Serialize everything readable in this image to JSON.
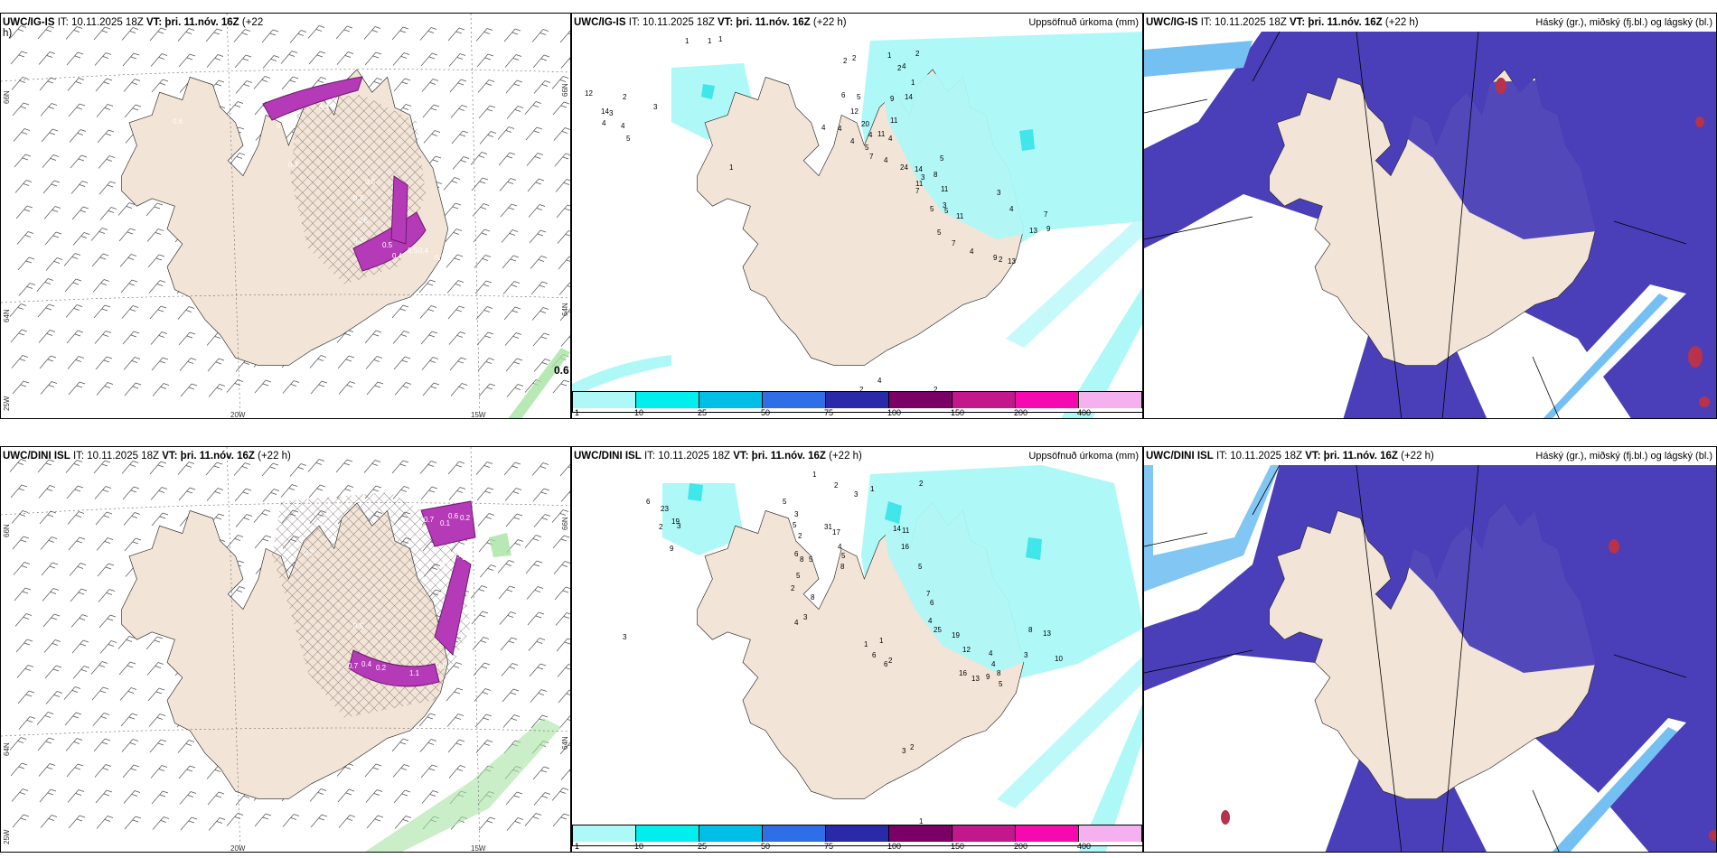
{
  "colors": {
    "land": "#f2e4d6",
    "precip_light": "#aef8f8",
    "precip_mid": "#40e6ea",
    "cloud_dark": "#4a3fb8",
    "cloud_mid": "#4b7bec",
    "cloud_light": "#74c0f2",
    "cloud_red": "#b7324a",
    "magenta": "#b53ab8",
    "green": "#a6e3a1"
  },
  "panels": {
    "ig_wind": {
      "title_model": "UWC/IG-IS",
      "title_it": "IT: 10.11.2025 18Z",
      "title_vt_label": "VT:",
      "title_vt": "þri. 11.nóv. 16Z",
      "title_lead": "(+22",
      "title_lead2": "h)",
      "lat_labels": [
        "66N",
        "64N"
      ],
      "lat_labels_right": [
        "66N",
        "64N"
      ],
      "lon_labels": [
        "25W",
        "20W",
        "15W"
      ],
      "corner_value": "0.6",
      "values": [
        "0.6",
        "0.5",
        "1.1",
        "0.4",
        "0.5",
        "0.3",
        "0.5",
        "0.4",
        "0.5",
        "0.2",
        "0.6",
        "0.2",
        "0.3",
        "0.4"
      ]
    },
    "ig_precip": {
      "title_model": "UWC/IG-IS",
      "title_it": "IT: 10.11.2025 18Z",
      "title_vt_label": "VT:",
      "title_vt": "þri. 11.nóv. 16Z",
      "title_lead": "(+22 h)",
      "right_title": "Uppsöfnuð úrkoma (mm)",
      "values": [
        "1",
        "1",
        "1",
        "12",
        "14",
        "4",
        "3",
        "2",
        "3",
        "4",
        "5",
        "1",
        "6",
        "5",
        "12",
        "20",
        "4",
        "4",
        "4",
        "4",
        "11",
        "11",
        "14",
        "9",
        "2",
        "1",
        "1",
        "4",
        "5",
        "7",
        "4",
        "24",
        "14",
        "3",
        "8",
        "5",
        "7",
        "11",
        "5",
        "11",
        "5",
        "7",
        "4",
        "9",
        "2",
        "13",
        "13",
        "9",
        "7",
        "3",
        "4",
        "4",
        "2",
        "2",
        "2",
        "2",
        "2",
        "4",
        "11",
        "5",
        "3"
      ],
      "colorbar_labels": [
        "1",
        "10",
        "25",
        "50",
        "75",
        "100",
        "150",
        "200",
        "400"
      ]
    },
    "ig_cloud": {
      "title_model": "UWC/IG-IS",
      "title_it": "IT: 10.11.2025 18Z",
      "title_vt_label": "VT:",
      "title_vt": "þri. 11.nóv. 16Z",
      "title_lead": "(+22 h)",
      "right_title": "Háský (gr.), miðský (fj.bl.) og lágský (bl.)"
    },
    "dini_wind": {
      "title_model": "UWC/DINI ISL",
      "title_it": "IT: 10.11.2025 18Z",
      "title_vt_label": "VT:",
      "title_vt": "þri. 11.nóv. 16Z",
      "title_lead": "(+22 h)",
      "lat_labels": [
        "66N",
        "64N"
      ],
      "lat_labels_right": [
        "66N",
        "64N"
      ],
      "lon_labels": [
        "25W",
        "20W",
        "15W"
      ],
      "values": [
        "0.4",
        "0.2",
        "0.7",
        "0.1",
        "0.6",
        "0.2",
        "0.6",
        "0.4",
        "0.5",
        "0.3",
        "0.5",
        "0.7",
        "0.4",
        "0.2",
        "1.1",
        "0.6"
      ]
    },
    "dini_precip": {
      "title_model": "UWC/DINI ISL",
      "title_it": "IT: 10.11.2025 18Z",
      "title_vt_label": "VT:",
      "title_vt": "þri. 11.nóv. 16Z",
      "title_lead": "(+22 h)",
      "right_title": "Uppsöfnuð úrkoma (mm)",
      "values": [
        "1",
        "2",
        "3",
        "2",
        "1",
        "6",
        "23",
        "19",
        "2",
        "3",
        "9",
        "3",
        "5",
        "3",
        "5",
        "2",
        "6",
        "8",
        "5",
        "5",
        "31",
        "17",
        "4",
        "5",
        "8",
        "14",
        "11",
        "16",
        "5",
        "7",
        "6",
        "4",
        "25",
        "19",
        "12",
        "16",
        "13",
        "9",
        "4",
        "4",
        "8",
        "5",
        "3",
        "8",
        "13",
        "10",
        "2",
        "1",
        "3",
        "2",
        "6",
        "6",
        "1",
        "1",
        "4",
        "3",
        "2",
        "8"
      ],
      "colorbar_labels": [
        "1",
        "10",
        "25",
        "50",
        "75",
        "100",
        "150",
        "200",
        "400"
      ]
    },
    "dini_cloud": {
      "title_model": "UWC/DINI ISL",
      "title_it": "IT: 10.11.2025 18Z",
      "title_vt_label": "VT:",
      "title_vt": "þri. 11.nóv. 16Z",
      "title_lead": "(+22 h)",
      "right_title": "Háský (gr.), miðský (fj.bl.) og lágský (bl.)"
    }
  },
  "colorbar_colors": [
    "#aef8f8",
    "#00eeee",
    "#00bfe6",
    "#2e6fe8",
    "#2a2aa8",
    "#7a0066",
    "#c2188b",
    "#f50ab0",
    "#f5b0f0"
  ]
}
